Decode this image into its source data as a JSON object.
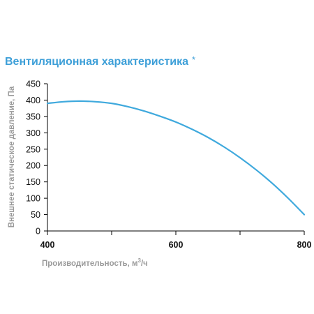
{
  "page_title": "Вентиляционная характеристика",
  "title_mark": "*",
  "chart_data": {
    "type": "line",
    "title": "Вентиляционная характеристика *",
    "xlabel_main": "Производительность, м",
    "xlabel_sup": "3",
    "xlabel_tail": "/ч",
    "ylabel": "Внешнее статическое давление, Па",
    "xlim": [
      400,
      800
    ],
    "ylim": [
      0,
      450
    ],
    "x_ticks": [
      400,
      600,
      800
    ],
    "x_minor_ticks": [
      500,
      700
    ],
    "y_ticks": [
      0,
      50,
      100,
      150,
      200,
      250,
      300,
      350,
      400,
      450
    ],
    "grid": false,
    "series": [
      {
        "color": "#3fa9dd",
        "x": [
          400,
          425,
          450,
          475,
          500,
          525,
          550,
          575,
          600,
          625,
          650,
          675,
          700,
          725,
          750,
          775,
          800
        ],
        "y": [
          390,
          395,
          397,
          395,
          390,
          380,
          367,
          351,
          333,
          311,
          286,
          257,
          224,
          187,
          146,
          100,
          50
        ]
      }
    ]
  }
}
